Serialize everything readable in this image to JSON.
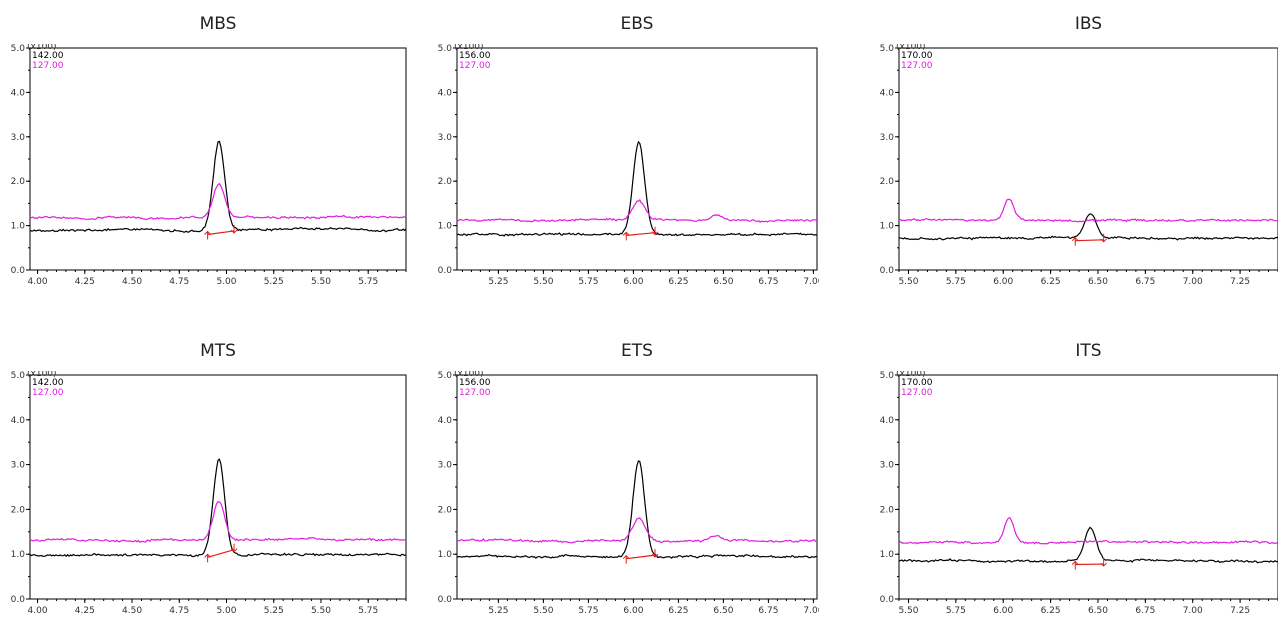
{
  "chart_data": [
    {
      "type": "line",
      "title": "MBS",
      "y_multiplier_label": "(x100)",
      "ylim": [
        0,
        5.0
      ],
      "yticks": [
        "0.0",
        "1.0",
        "2.0",
        "3.0",
        "4.0",
        "5.0"
      ],
      "xlim": [
        3.96,
        5.95
      ],
      "xticks": [
        "4.00",
        "4.25",
        "4.50",
        "4.75",
        "5.00",
        "5.25",
        "5.50",
        "5.75"
      ],
      "legend": [
        "142.00",
        "127.00"
      ],
      "series": [
        {
          "name": "142.00",
          "color": "#000000",
          "baseline": 0.9,
          "peak_x": 4.96,
          "peak_height": 2.9,
          "peak_sigma": 0.03
        },
        {
          "name": "127.00",
          "color": "#e01ee0",
          "baseline": 1.18,
          "peak_x": 4.96,
          "peak_height": 1.95,
          "peak_sigma": 0.03
        }
      ],
      "integration": {
        "start": [
          4.9,
          0.8
        ],
        "end": [
          5.04,
          0.88
        ]
      }
    },
    {
      "type": "line",
      "title": "EBS",
      "y_multiplier_label": "(x100)",
      "ylim": [
        0,
        5.0
      ],
      "yticks": [
        "0.0",
        "1.0",
        "2.0",
        "3.0",
        "4.0",
        "5.0"
      ],
      "xlim": [
        5.02,
        7.02
      ],
      "xticks": [
        "5.25",
        "5.50",
        "5.75",
        "6.00",
        "6.25",
        "6.50",
        "6.75",
        "7.00"
      ],
      "legend": [
        "156.00",
        "127.00"
      ],
      "series": [
        {
          "name": "156.00",
          "color": "#000000",
          "baseline": 0.8,
          "peak_x": 6.03,
          "peak_height": 2.85,
          "peak_sigma": 0.032
        },
        {
          "name": "127.00",
          "color": "#e01ee0",
          "baseline": 1.12,
          "peak_x": 6.03,
          "peak_height": 1.58,
          "peak_sigma": 0.035,
          "bump_x": 6.46,
          "bump_height": 1.25
        }
      ],
      "integration": {
        "start": [
          5.96,
          0.78
        ],
        "end": [
          6.12,
          0.84
        ]
      }
    },
    {
      "type": "line",
      "title": "IBS",
      "y_multiplier_label": "(x100)",
      "ylim": [
        0,
        5.0
      ],
      "yticks": [
        "0.0",
        "1.0",
        "2.0",
        "3.0",
        "4.0",
        "5.0"
      ],
      "xlim": [
        5.45,
        7.45
      ],
      "xticks": [
        "5.50",
        "5.75",
        "6.00",
        "6.25",
        "6.50",
        "6.75",
        "7.00",
        "7.25"
      ],
      "legend": [
        "170.00",
        "127.00"
      ],
      "series": [
        {
          "name": "170.00",
          "color": "#000000",
          "baseline": 0.72,
          "peak_x": 6.46,
          "peak_height": 1.27,
          "peak_sigma": 0.03
        },
        {
          "name": "127.00",
          "color": "#e01ee0",
          "baseline": 1.12,
          "peak_x": 6.03,
          "peak_height": 1.6,
          "peak_sigma": 0.025
        }
      ],
      "integration": {
        "start": [
          6.38,
          0.66
        ],
        "end": [
          6.53,
          0.68
        ]
      }
    },
    {
      "type": "line",
      "title": "MTS",
      "y_multiplier_label": "(x100)",
      "ylim": [
        0,
        5.0
      ],
      "yticks": [
        "0.0",
        "1.0",
        "2.0",
        "3.0",
        "4.0",
        "5.0"
      ],
      "xlim": [
        3.96,
        5.95
      ],
      "xticks": [
        "4.00",
        "4.25",
        "4.50",
        "4.75",
        "5.00",
        "5.25",
        "5.50",
        "5.75"
      ],
      "legend": [
        "142.00",
        "127.00"
      ],
      "series": [
        {
          "name": "142.00",
          "color": "#000000",
          "baseline": 0.98,
          "peak_x": 4.96,
          "peak_height": 3.12,
          "peak_sigma": 0.03
        },
        {
          "name": "127.00",
          "color": "#e01ee0",
          "baseline": 1.32,
          "peak_x": 4.96,
          "peak_height": 2.18,
          "peak_sigma": 0.03
        }
      ],
      "integration": {
        "start": [
          4.9,
          0.93
        ],
        "end": [
          5.04,
          1.1
        ]
      }
    },
    {
      "type": "line",
      "title": "ETS",
      "y_multiplier_label": "(x100)",
      "ylim": [
        0,
        5.0
      ],
      "yticks": [
        "0.0",
        "1.0",
        "2.0",
        "3.0",
        "4.0",
        "5.0"
      ],
      "xlim": [
        5.02,
        7.02
      ],
      "xticks": [
        "5.25",
        "5.50",
        "5.75",
        "6.00",
        "6.25",
        "6.50",
        "6.75",
        "7.00"
      ],
      "legend": [
        "156.00",
        "127.00"
      ],
      "series": [
        {
          "name": "156.00",
          "color": "#000000",
          "baseline": 0.95,
          "peak_x": 6.03,
          "peak_height": 3.1,
          "peak_sigma": 0.032
        },
        {
          "name": "127.00",
          "color": "#e01ee0",
          "baseline": 1.3,
          "peak_x": 6.03,
          "peak_height": 1.8,
          "peak_sigma": 0.035,
          "bump_x": 6.46,
          "bump_height": 1.42
        }
      ],
      "integration": {
        "start": [
          5.96,
          0.9
        ],
        "end": [
          6.12,
          0.98
        ]
      }
    },
    {
      "type": "line",
      "title": "ITS",
      "y_multiplier_label": "(x100)",
      "ylim": [
        0,
        5.0
      ],
      "yticks": [
        "0.0",
        "1.0",
        "2.0",
        "3.0",
        "4.0",
        "5.0"
      ],
      "xlim": [
        5.45,
        7.45
      ],
      "xticks": [
        "5.50",
        "5.75",
        "6.00",
        "6.25",
        "6.50",
        "6.75",
        "7.00",
        "7.25"
      ],
      "legend": [
        "170.00",
        "127.00"
      ],
      "series": [
        {
          "name": "170.00",
          "color": "#000000",
          "baseline": 0.85,
          "peak_x": 6.46,
          "peak_height": 1.58,
          "peak_sigma": 0.03
        },
        {
          "name": "127.00",
          "color": "#e01ee0",
          "baseline": 1.27,
          "peak_x": 6.03,
          "peak_height": 1.82,
          "peak_sigma": 0.025
        }
      ],
      "integration": {
        "start": [
          6.38,
          0.77
        ],
        "end": [
          6.53,
          0.78
        ]
      }
    }
  ]
}
